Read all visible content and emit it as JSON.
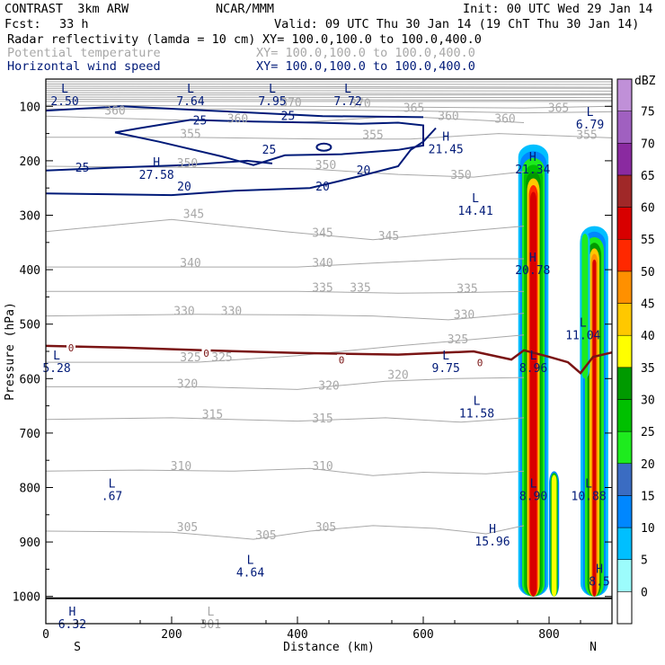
{
  "header": {
    "title_left": "CONTRAST  3km ARW",
    "title_center": "NCAR/MMM",
    "init": "Init: 00 UTC Wed 29 Jan 14",
    "fcst_label": "Fcst:",
    "fcst_value": "33 h",
    "valid": "Valid: 09 UTC Thu 30 Jan 14 (19 ChT Thu 30 Jan 14)",
    "fields": [
      {
        "name": "Radar reflectivity (lamda = 10 cm)",
        "xy": "XY= 100.0,100.0 to 100.0,400.0"
      },
      {
        "name": "Potential temperature",
        "xy": "XY= 100.0,100.0 to 100.0,400.0"
      },
      {
        "name": "Horizontal wind speed",
        "xy": "XY= 100.0,100.0 to 100.0,400.0"
      }
    ]
  },
  "colors": {
    "reflectivity": "#000000",
    "theta": "#a8a8a8",
    "wind": "#001a78",
    "freezing": "#7a1414"
  },
  "chart_data": {
    "type": "cross-section",
    "xlabel": "Distance (km)",
    "ylabel": "Pressure (hPa)",
    "xlim": [
      0,
      900
    ],
    "ylim": [
      1050,
      50
    ],
    "x_ticks": [
      0,
      200,
      400,
      600,
      800
    ],
    "x_tick_labels": [
      "0",
      "200",
      "400",
      "600",
      "800"
    ],
    "y_ticks": [
      100,
      200,
      300,
      400,
      500,
      600,
      700,
      800,
      900,
      1000
    ],
    "y_tick_labels": [
      "100",
      "200",
      "300",
      "400",
      "500",
      "600",
      "700",
      "800",
      "900",
      "1000"
    ],
    "edge_labels": {
      "left": "S",
      "right": "N"
    },
    "colorbar": {
      "unit": "dBZ",
      "levels": [
        0,
        5,
        10,
        15,
        20,
        25,
        30,
        35,
        40,
        45,
        50,
        55,
        60,
        65,
        70,
        75
      ],
      "level_labels": [
        "0",
        "5",
        "10",
        "15",
        "20",
        "25",
        "30",
        "35",
        "40",
        "45",
        "50",
        "55",
        "60",
        "65",
        "70",
        "75"
      ],
      "colors": [
        "#ffffff",
        "#9cfcfc",
        "#00bfff",
        "#0087ff",
        "#3a6cc2",
        "#1eeb1e",
        "#00c000",
        "#009a00",
        "#ffff00",
        "#ffc800",
        "#ff9000",
        "#ff2800",
        "#d80000",
        "#a02828",
        "#8a2aa0",
        "#a060c0",
        "#c090d8"
      ]
    },
    "theta_contours": {
      "levels": [
        305,
        310,
        315,
        320,
        325,
        330,
        335,
        340,
        345,
        350,
        355,
        360,
        365,
        370
      ],
      "labels": [
        {
          "text": "305",
          "x": 445,
          "p": 880
        },
        {
          "text": "305",
          "x": 225,
          "p": 880
        },
        {
          "text": "305",
          "x": 350,
          "p": 895
        },
        {
          "text": "310",
          "x": 215,
          "p": 768
        },
        {
          "text": "310",
          "x": 440,
          "p": 768
        },
        {
          "text": "315",
          "x": 265,
          "p": 673
        },
        {
          "text": "315",
          "x": 440,
          "p": 680
        },
        {
          "text": "320",
          "x": 225,
          "p": 617
        },
        {
          "text": "320",
          "x": 450,
          "p": 620
        },
        {
          "text": "320",
          "x": 560,
          "p": 600
        },
        {
          "text": "325",
          "x": 230,
          "p": 568
        },
        {
          "text": "325",
          "x": 280,
          "p": 568
        },
        {
          "text": "325",
          "x": 655,
          "p": 535
        },
        {
          "text": "330",
          "x": 220,
          "p": 483
        },
        {
          "text": "330",
          "x": 295,
          "p": 483
        },
        {
          "text": "330",
          "x": 665,
          "p": 490
        },
        {
          "text": "335",
          "x": 440,
          "p": 440
        },
        {
          "text": "335",
          "x": 500,
          "p": 440
        },
        {
          "text": "335",
          "x": 670,
          "p": 442
        },
        {
          "text": "340",
          "x": 230,
          "p": 395
        },
        {
          "text": "340",
          "x": 440,
          "p": 395
        },
        {
          "text": "345",
          "x": 235,
          "p": 305
        },
        {
          "text": "345",
          "x": 440,
          "p": 340
        },
        {
          "text": "345",
          "x": 545,
          "p": 345
        },
        {
          "text": "350",
          "x": 225,
          "p": 212
        },
        {
          "text": "350",
          "x": 445,
          "p": 215
        },
        {
          "text": "350",
          "x": 660,
          "p": 233
        },
        {
          "text": "355",
          "x": 230,
          "p": 158
        },
        {
          "text": "355",
          "x": 520,
          "p": 160
        },
        {
          "text": "355",
          "x": 860,
          "p": 160
        },
        {
          "text": "360",
          "x": 110,
          "p": 115
        },
        {
          "text": "360",
          "x": 305,
          "p": 130
        },
        {
          "text": "360",
          "x": 640,
          "p": 125
        },
        {
          "text": "360",
          "x": 730,
          "p": 130
        },
        {
          "text": "365",
          "x": 585,
          "p": 110
        },
        {
          "text": "365",
          "x": 815,
          "p": 110
        },
        {
          "text": "370",
          "x": 390,
          "p": 100
        },
        {
          "text": "370",
          "x": 500,
          "p": 102
        }
      ]
    },
    "wind_contour_labels": [
      {
        "text": "25",
        "x": 245,
        "p": 133
      },
      {
        "text": "25",
        "x": 385,
        "p": 125
      },
      {
        "text": "25",
        "x": 355,
        "p": 187
      },
      {
        "text": "25",
        "x": 58,
        "p": 220
      },
      {
        "text": "20",
        "x": 220,
        "p": 255
      },
      {
        "text": "20",
        "x": 440,
        "p": 255
      },
      {
        "text": "20",
        "x": 505,
        "p": 225
      }
    ],
    "freezing_level_labels": [
      {
        "text": "0",
        "x": 40,
        "p": 545
      },
      {
        "text": "0",
        "x": 255,
        "p": 555
      },
      {
        "text": "0",
        "x": 470,
        "p": 567
      },
      {
        "text": "0",
        "x": 690,
        "p": 572
      }
    ],
    "extrema": [
      {
        "type": "L",
        "value": "2.50",
        "x": 30,
        "p": 75
      },
      {
        "type": "L",
        "value": "7.64",
        "x": 230,
        "p": 75
      },
      {
        "type": "L",
        "value": "7.95",
        "x": 360,
        "p": 75
      },
      {
        "type": "L",
        "value": "7.72",
        "x": 480,
        "p": 75
      },
      {
        "type": "L",
        "value": "6.79",
        "x": 865,
        "p": 118
      },
      {
        "type": "H",
        "value": "21.45",
        "x": 636,
        "p": 163
      },
      {
        "type": "H",
        "value": "27.58",
        "x": 176,
        "p": 210
      },
      {
        "type": "H",
        "value": "21.34",
        "x": 774,
        "p": 200
      },
      {
        "type": "L",
        "value": "14.41",
        "x": 683,
        "p": 276
      },
      {
        "type": "H",
        "value": "20.78",
        "x": 774,
        "p": 385
      },
      {
        "type": "L",
        "value": "11.04",
        "x": 854,
        "p": 505
      },
      {
        "type": "L",
        "value": "5.28",
        "x": 0,
        "p": 565
      },
      {
        "type": "L",
        "value": "9.75",
        "x": 636,
        "p": 565
      },
      {
        "type": "L",
        "value": "8.96",
        "x": 775,
        "p": 565
      },
      {
        "type": "L",
        "value": "11.58",
        "x": 685,
        "p": 648
      },
      {
        "type": "L",
        "value": ".67",
        "x": 105,
        "p": 800
      },
      {
        "type": "L",
        "value": "8.90",
        "x": 775,
        "p": 800
      },
      {
        "type": "L",
        "value": "10.88",
        "x": 863,
        "p": 800
      },
      {
        "type": "H",
        "value": "15.96",
        "x": 710,
        "p": 883
      },
      {
        "type": "L",
        "value": "4.64",
        "x": 325,
        "p": 940
      },
      {
        "type": "H",
        "value": "8.5",
        "x": 880,
        "p": 957
      },
      {
        "type": "H",
        "value": "6.32",
        "x": 42,
        "p": 1035
      },
      {
        "type": "L",
        "value": "301",
        "x": 262,
        "p": 1035
      }
    ]
  }
}
